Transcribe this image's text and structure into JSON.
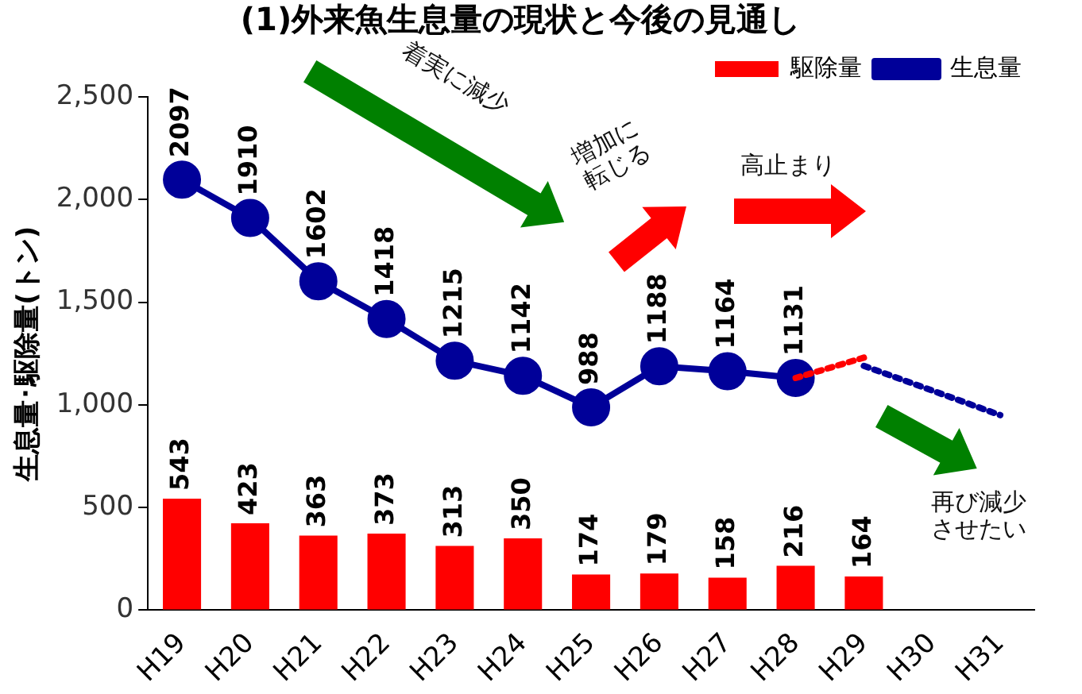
{
  "chart_data": {
    "type": "bar",
    "title": "(1)外来魚生息量の現状と今後の見通し",
    "ylabel": "生息量･駆除量(トン)",
    "categories": [
      "H19",
      "H20",
      "H21",
      "H22",
      "H23",
      "H24",
      "H25",
      "H26",
      "H27",
      "H28",
      "H29",
      "H30",
      "H31"
    ],
    "ylim": [
      0,
      2500
    ],
    "yticks": [
      0,
      {
        "value": 500,
        "label": "500"
      },
      {
        "value": 1000,
        "label": "1,000"
      },
      {
        "value": 1500,
        "label": "1,500"
      },
      {
        "value": 2000,
        "label": "2,000"
      },
      {
        "value": 2500,
        "label": "2,500"
      }
    ],
    "grid": false,
    "legend": "top right",
    "series": [
      {
        "name": "駆除量",
        "color": "#ff0000",
        "values": [
          543,
          423,
          363,
          373,
          313,
          350,
          174,
          179,
          158,
          216,
          164,
          null,
          null
        ],
        "value_labels": [
          "543",
          "423",
          "363",
          "373",
          "313",
          "350",
          "174",
          "179",
          "158",
          "216",
          "164",
          null,
          null
        ]
      },
      {
        "name": "生息量",
        "type": "line",
        "color": "#000099",
        "marker": "circle",
        "line_style": "solid",
        "values": [
          2097,
          1910,
          1602,
          1418,
          1215,
          1142,
          988,
          1188,
          1164,
          1131,
          null,
          null,
          null
        ],
        "value_labels": [
          "2097",
          "1910",
          "1602",
          "1418",
          "1215",
          "1142",
          "988",
          "1188",
          "1164",
          "1131",
          null,
          null,
          null
        ]
      },
      {
        "type": "line",
        "color": "#ff0000",
        "marker": "none",
        "line_style": "dotted",
        "values": [
          null,
          null,
          null,
          null,
          null,
          null,
          null,
          null,
          null,
          1131,
          1230,
          null,
          null
        ]
      },
      {
        "type": "line",
        "color": "#000099",
        "marker": "none",
        "line_style": "dotted",
        "values": [
          null,
          null,
          null,
          null,
          null,
          null,
          null,
          null,
          null,
          null,
          1190,
          1070,
          950
        ]
      }
    ],
    "annotations": [
      "着実に減少",
      "増加に転じる",
      "高止まり",
      "再び減少させたい"
    ]
  }
}
